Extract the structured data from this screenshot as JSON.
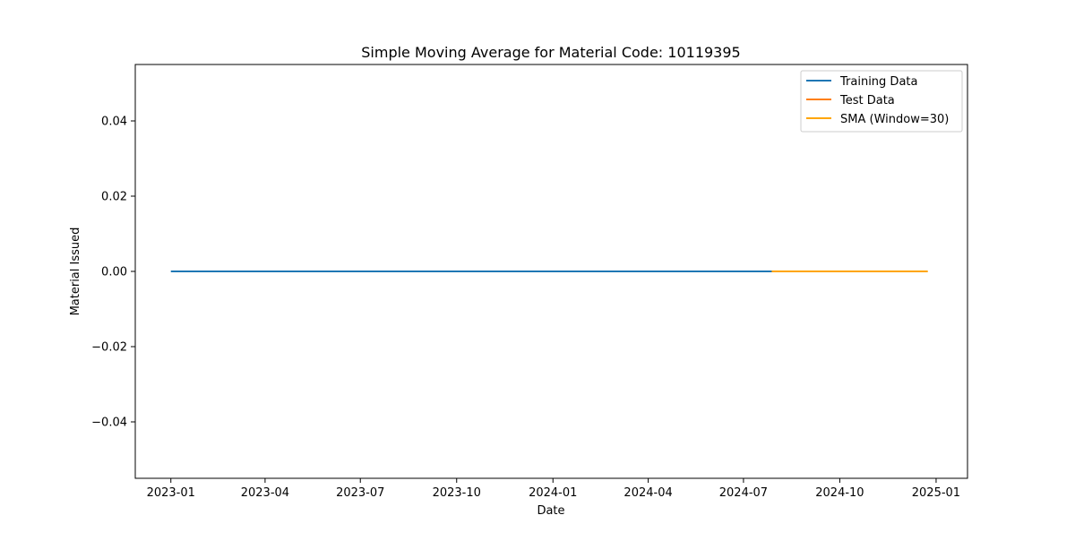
{
  "chart_data": {
    "type": "line",
    "title": "Simple Moving Average for Material Code: 10119395",
    "xlabel": "Date",
    "ylabel": "Material Issued",
    "x_scale": "date",
    "xlim": [
      "2022-11-28",
      "2025-01-31"
    ],
    "ylim": [
      -0.055,
      0.055
    ],
    "xticks": [
      "2023-01",
      "2023-04",
      "2023-07",
      "2023-10",
      "2024-01",
      "2024-04",
      "2024-07",
      "2024-10",
      "2025-01"
    ],
    "xtick_dates": [
      "2023-01-01",
      "2023-04-01",
      "2023-07-01",
      "2023-10-01",
      "2024-01-01",
      "2024-04-01",
      "2024-07-01",
      "2024-10-01",
      "2025-01-01"
    ],
    "yticks": [
      0.04,
      0.02,
      0.0,
      -0.02,
      -0.04
    ],
    "ytick_labels": [
      "0.04",
      "0.02",
      "0.00",
      "−0.02",
      "−0.04"
    ],
    "grid": false,
    "legend_position": "top-right",
    "series": [
      {
        "name": "Training Data",
        "color": "#1f77b4",
        "x": [
          "2023-01-01",
          "2024-07-28"
        ],
        "y": [
          0,
          0
        ]
      },
      {
        "name": "Test Data",
        "color": "#ff7f0e",
        "x": [
          "2024-07-28",
          "2024-12-24"
        ],
        "y": [
          0,
          0
        ]
      },
      {
        "name": "SMA (Window=30)",
        "color": "#ffa500",
        "x": [
          "2024-07-28",
          "2024-12-24"
        ],
        "y": [
          0,
          0
        ]
      }
    ]
  }
}
